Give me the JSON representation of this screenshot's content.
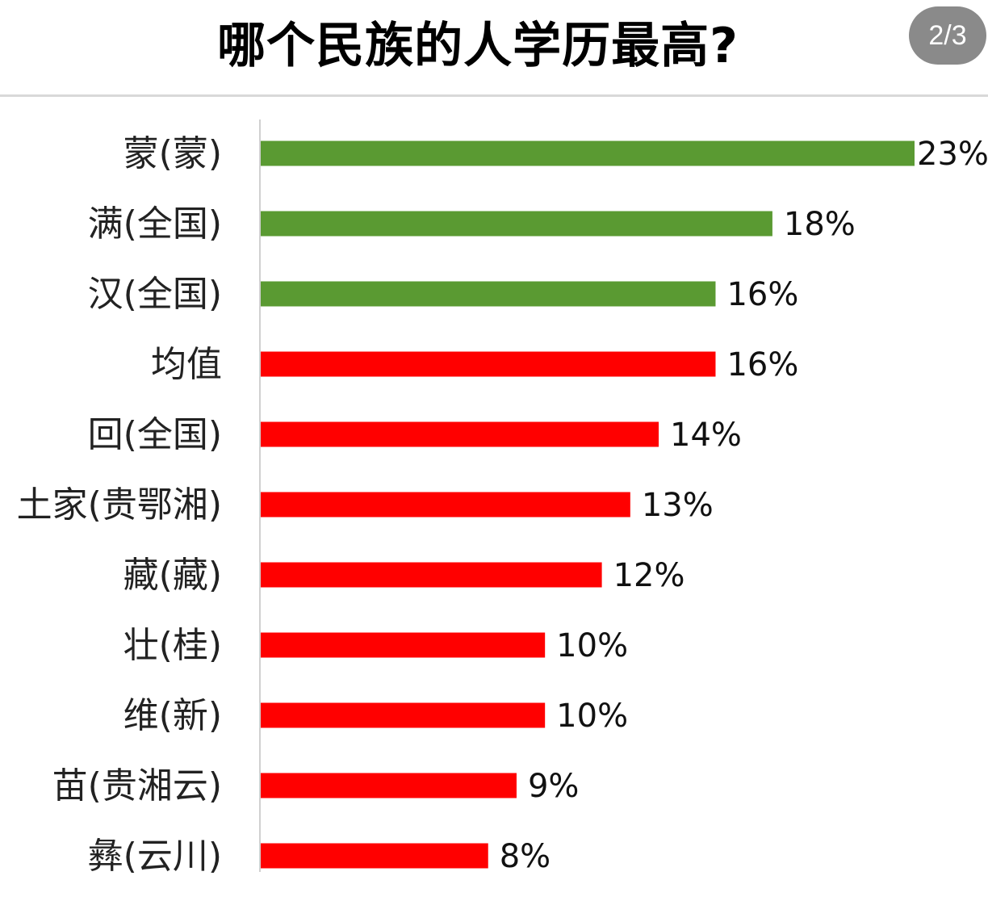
{
  "header": {
    "title": "哪个民族的人学历最高?",
    "page_indicator": "2/3"
  },
  "chart_data": {
    "type": "bar",
    "orientation": "horizontal",
    "categories": [
      "蒙(蒙)",
      "满(全国)",
      "汉(全国)",
      "均值",
      "回(全国)",
      "土家(贵鄂湘)",
      "藏(藏)",
      "壮(桂)",
      "维(新)",
      "苗(贵湘云)",
      "彝(云川)"
    ],
    "values": [
      23,
      18,
      16,
      16,
      14,
      13,
      12,
      10,
      10,
      9,
      8
    ],
    "value_labels": [
      "23%",
      "18%",
      "16%",
      "16%",
      "14%",
      "13%",
      "12%",
      "10%",
      "10%",
      "9%",
      "8%"
    ],
    "bar_colors": [
      "#5a9a32",
      "#5a9a32",
      "#5a9a32",
      "#ff0000",
      "#ff0000",
      "#ff0000",
      "#ff0000",
      "#ff0000",
      "#ff0000",
      "#ff0000",
      "#ff0000"
    ],
    "xlim": [
      0,
      23
    ],
    "grid": false,
    "legend": "none"
  }
}
